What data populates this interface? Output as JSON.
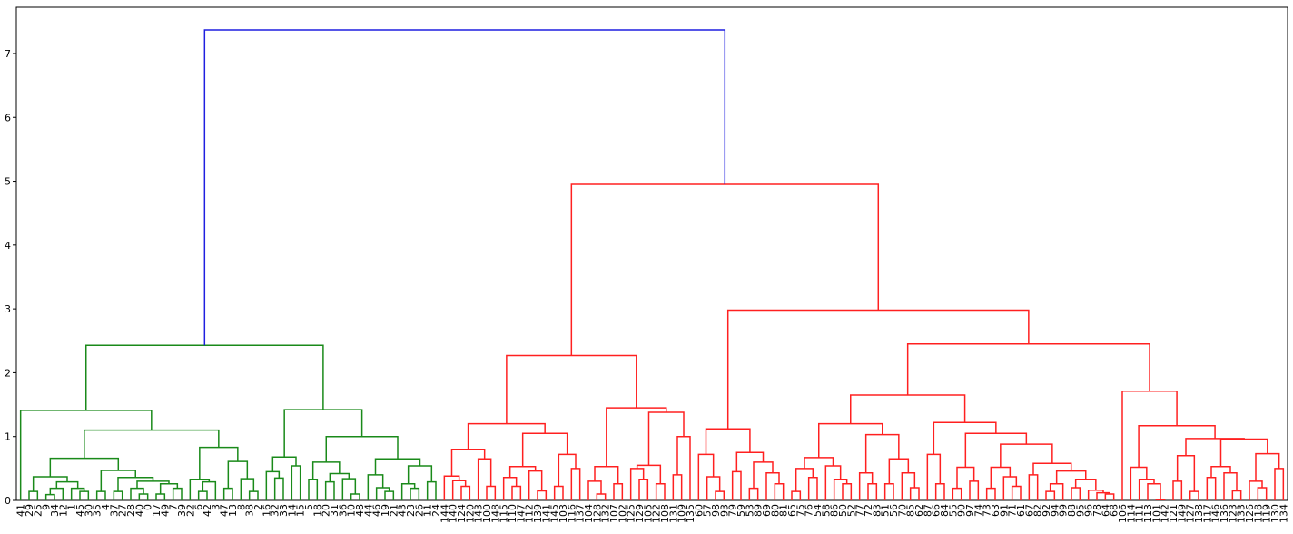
{
  "chart_data": {
    "type": "dendrogram",
    "ylim": [
      0,
      7.725
    ],
    "yticks": [
      0,
      1,
      2,
      3,
      4,
      5,
      6,
      7
    ],
    "root_color": "#1f1fe0",
    "cluster_colors": [
      "#1a8a1a",
      "#ff2020"
    ],
    "tree": [
      7.37,
      [
        2.43,
        [
          1.41,
          "41",
          [
            1.1,
            [
              0.66,
              [
                0.37,
                [
                  0.14,
                  "29",
                  "25"
                ],
                [
                  0.29,
                  [
                    0.19,
                    [
                      0.09,
                      "9",
                      "34"
                    ],
                    "12"
                  ],
                  [
                    0.19,
                    "1",
                    [
                      0.14,
                      "45",
                      "30"
                    ]
                  ]
                ]
              ],
              [
                0.47,
                [
                  0.14,
                  "35",
                  "4"
                ],
                [
                  0.36,
                  [
                    0.14,
                    "37",
                    "27"
                  ],
                  [
                    0.3,
                    [
                      0.19,
                      "28",
                      [
                        0.1,
                        "40",
                        "0"
                      ]
                    ],
                    [
                      0.26,
                      [
                        0.1,
                        "17",
                        "49"
                      ],
                      [
                        0.19,
                        "7",
                        "39"
                      ]
                    ]
                  ]
                ]
              ]
            ],
            [
              0.83,
              [
                0.33,
                "22",
                [
                  0.29,
                  [
                    0.14,
                    "6",
                    "42"
                  ],
                  "3"
                ]
              ],
              [
                0.61,
                [
                  0.19,
                  "47",
                  "13"
                ],
                [
                  0.34,
                  "8",
                  [
                    0.14,
                    "38",
                    "2"
                  ]
                ]
              ]
            ]
          ]
        ],
        [
          1.42,
          [
            0.68,
            [
              0.45,
              "16",
              [
                0.35,
                "32",
                "33"
              ]
            ],
            [
              0.54,
              "14",
              "15"
            ]
          ],
          [
            1.0,
            [
              0.6,
              [
                0.33,
                "5",
                "18"
              ],
              [
                0.42,
                [
                  0.29,
                  "20",
                  "31"
                ],
                [
                  0.34,
                  "36",
                  [
                    0.1,
                    "10",
                    "48"
                  ]
                ]
              ]
            ],
            [
              0.65,
              [
                0.4,
                "44",
                [
                  0.2,
                  "46",
                  [
                    0.14,
                    "19",
                    "21"
                  ]
                ]
              ],
              [
                0.54,
                [
                  0.26,
                  "43",
                  [
                    0.19,
                    "23",
                    "26"
                  ]
                ],
                [
                  0.29,
                  "11",
                  "24"
                ]
              ]
            ]
          ]
        ]
      ],
      [
        4.95,
        [
          2.27,
          [
            1.2,
            [
              0.8,
              [
                0.38,
                "144",
                [
                  0.31,
                  "140",
                  [
                    0.22,
                    "124",
                    "120"
                  ]
                ]
              ],
              [
                0.65,
                "143",
                [
                  0.22,
                  "100",
                  "148"
                ]
              ]
            ],
            [
              1.05,
              [
                0.53,
                [
                  0.36,
                  "115",
                  [
                    0.22,
                    "110",
                    "147"
                  ]
                ],
                [
                  0.46,
                  "112",
                  [
                    0.15,
                    "139",
                    "141"
                  ]
                ]
              ],
              [
                0.72,
                [
                  0.22,
                  "145",
                  "103"
                ],
                [
                  0.5,
                  "116",
                  "137"
                ]
              ]
            ]
          ],
          [
            1.45,
            [
              0.53,
              [
                0.3,
                "104",
                [
                  0.1,
                  "128",
                  "132"
                ]
              ],
              [
                0.26,
                "107",
                "102"
              ]
            ],
            [
              1.38,
              [
                0.55,
                [
                  0.5,
                  "125",
                  [
                    0.33,
                    "129",
                    "105"
                  ]
                ],
                [
                  0.26,
                  "122",
                  "108"
                ]
              ],
              [
                1.0,
                [
                  0.4,
                  "131",
                  "109"
                ],
                "135"
              ]
            ]
          ]
        ],
        [
          2.98,
          [
            1.12,
            [
              0.72,
              "60",
              [
                0.37,
                "57",
                [
                  0.14,
                  "98",
                  "93"
                ]
              ]
            ],
            [
              0.75,
              [
                0.45,
                "79",
                "59"
              ],
              [
                0.6,
                [
                  0.19,
                  "53",
                  "89"
                ],
                [
                  0.43,
                  "69",
                  [
                    0.26,
                    "80",
                    "81"
                  ]
                ]
              ]
            ]
          ],
          [
            2.45,
            [
              1.65,
              [
                1.2,
                [
                  0.67,
                  [
                    0.5,
                    [
                      0.14,
                      "65",
                      "75"
                    ],
                    [
                      0.36,
                      "76",
                      "54"
                    ]
                  ],
                  [
                    0.54,
                    "58",
                    [
                      0.33,
                      "86",
                      [
                        0.26,
                        "50",
                        "52"
                      ]
                    ]
                  ]
                ],
                [
                  1.03,
                  [
                    0.43,
                    "77",
                    [
                      0.26,
                      "72",
                      "83"
                    ]
                  ],
                  [
                    0.65,
                    [
                      0.26,
                      "51",
                      "56"
                    ],
                    [
                      0.43,
                      "70",
                      [
                        0.2,
                        "85",
                        "62"
                      ]
                    ]
                  ]
                ]
              ],
              [
                1.22,
                [
                  0.72,
                  "87",
                  [
                    0.26,
                    "66",
                    "84"
                  ]
                ],
                [
                  1.05,
                  [
                    0.52,
                    [
                      0.19,
                      "55",
                      "90"
                    ],
                    [
                      0.3,
                      "97",
                      "74"
                    ]
                  ],
                  [
                    0.88,
                    [
                      0.52,
                      [
                        0.19,
                        "73",
                        "63"
                      ],
                      [
                        0.37,
                        "91",
                        [
                          0.22,
                          "71",
                          "61"
                        ]
                      ]
                    ],
                    [
                      0.58,
                      [
                        0.4,
                        "67",
                        "82"
                      ],
                      [
                        0.46,
                        [
                          0.26,
                          [
                            0.14,
                            "92",
                            "94"
                          ],
                          "99"
                        ],
                        [
                          0.33,
                          [
                            0.2,
                            "88",
                            "95"
                          ],
                          [
                            0.16,
                            "96",
                            [
                              0.12,
                              "78",
                              [
                                0.1,
                                "64",
                                "68"
                              ]
                            ]
                          ]
                        ]
                      ]
                    ]
                  ]
                ]
              ]
            ],
            [
              1.71,
              "106",
              [
                1.17,
                [
                  0.52,
                  "114",
                  [
                    0.33,
                    "111",
                    [
                      0.26,
                      "113",
                      [
                        0.01,
                        "101",
                        "142"
                      ]
                    ]
                  ]
                ],
                [
                  0.97,
                  [
                    0.7,
                    [
                      0.3,
                      "121",
                      "149"
                    ],
                    [
                      0.14,
                      "127",
                      "138"
                    ]
                  ],
                  [
                    0.96,
                    [
                      0.53,
                      [
                        0.36,
                        "117",
                        "146"
                      ],
                      [
                        0.43,
                        "136",
                        [
                          0.15,
                          "123",
                          "133"
                        ]
                      ]
                    ],
                    [
                      0.73,
                      [
                        0.3,
                        "126",
                        [
                          0.2,
                          "118",
                          "119"
                        ]
                      ],
                      [
                        0.5,
                        "130",
                        "134"
                      ]
                    ]
                  ]
                ]
              ]
            ]
          ]
        ]
      ]
    ]
  }
}
